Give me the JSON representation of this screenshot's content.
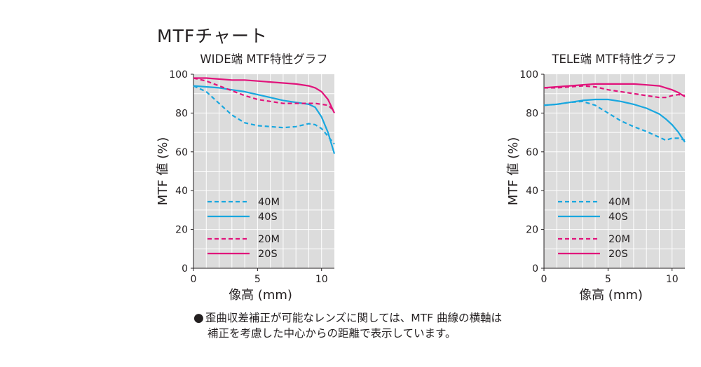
{
  "page": {
    "title": "MTFチャート"
  },
  "note": {
    "bullet": "●",
    "line1": "歪曲収差補正が可能なレンズに関しては、MTF 曲線の横軸は",
    "line2": "補正を考慮した中心からの距離で表示しています。"
  },
  "colors": {
    "cyan": "#19a7df",
    "magenta": "#e1137b",
    "plot_bg": "#dcdcdc",
    "grid": "#ffffff"
  },
  "chart_data": [
    {
      "type": "line",
      "title": "WIDE端 MTF特性グラフ",
      "xlabel": "像高 (mm)",
      "ylabel": "MTF 値 (%)",
      "xlim": [
        0,
        11
      ],
      "ylim": [
        0,
        100
      ],
      "xticks": [
        0,
        5,
        10
      ],
      "yticks": [
        0,
        20,
        40,
        60,
        80,
        100
      ],
      "grid": true,
      "legend": "lower-left",
      "series": [
        {
          "name": "40M",
          "color": "#19a7df",
          "dash": true,
          "x": [
            0,
            1,
            2,
            3,
            4,
            5,
            6,
            7,
            8,
            9,
            9.5,
            10,
            10.5,
            11
          ],
          "y": [
            94,
            91,
            85,
            79,
            75,
            73.5,
            73,
            72.5,
            73,
            74.5,
            74,
            72,
            68,
            64
          ]
        },
        {
          "name": "40S",
          "color": "#19a7df",
          "dash": false,
          "x": [
            0,
            1,
            2,
            3,
            4,
            5,
            6,
            7,
            8,
            9,
            9.5,
            10,
            10.5,
            11
          ],
          "y": [
            94,
            93.5,
            93,
            92,
            91,
            89.5,
            88,
            86.5,
            85.5,
            84.5,
            83,
            78,
            70,
            59
          ]
        },
        {
          "name": "20M",
          "color": "#e1137b",
          "dash": true,
          "x": [
            0,
            1,
            2,
            3,
            4,
            5,
            6,
            7,
            8,
            9,
            9.5,
            10,
            10.5,
            11
          ],
          "y": [
            98,
            96.5,
            94,
            91.5,
            89,
            87,
            86,
            85,
            85,
            85,
            85,
            84.5,
            84,
            81
          ]
        },
        {
          "name": "20S",
          "color": "#e1137b",
          "dash": false,
          "x": [
            0,
            1,
            2,
            3,
            4,
            5,
            6,
            7,
            8,
            9,
            9.5,
            10,
            10.5,
            11
          ],
          "y": [
            98,
            98,
            97.5,
            97,
            97,
            96.5,
            96,
            95.5,
            95,
            94,
            93,
            91,
            87,
            80
          ]
        }
      ]
    },
    {
      "type": "line",
      "title": "TELE端 MTF特性グラフ",
      "xlabel": "像高 (mm)",
      "ylabel": "MTF 値 (%)",
      "xlim": [
        0,
        11
      ],
      "ylim": [
        0,
        100
      ],
      "xticks": [
        0,
        5,
        10
      ],
      "yticks": [
        0,
        20,
        40,
        60,
        80,
        100
      ],
      "grid": true,
      "legend": "lower-left",
      "series": [
        {
          "name": "40M",
          "color": "#19a7df",
          "dash": true,
          "x": [
            0,
            1,
            2,
            3,
            4,
            5,
            6,
            7,
            8,
            9,
            9.5,
            10,
            10.5,
            11
          ],
          "y": [
            84,
            84.5,
            85.5,
            86,
            84,
            80,
            76,
            73,
            70.5,
            67.5,
            66,
            67,
            67,
            66
          ]
        },
        {
          "name": "40S",
          "color": "#19a7df",
          "dash": false,
          "x": [
            0,
            1,
            2,
            3,
            4,
            5,
            6,
            7,
            8,
            9,
            9.5,
            10,
            10.5,
            11
          ],
          "y": [
            84,
            84.5,
            85.5,
            86.5,
            87,
            87,
            86,
            84.5,
            82.5,
            79.5,
            77,
            74,
            70,
            65
          ]
        },
        {
          "name": "20M",
          "color": "#e1137b",
          "dash": true,
          "x": [
            0,
            1,
            2,
            3,
            4,
            5,
            6,
            7,
            8,
            9,
            9.5,
            10,
            10.5,
            11
          ],
          "y": [
            93,
            93,
            93.5,
            94,
            93.5,
            92,
            91,
            90,
            89,
            88,
            88,
            89,
            89.5,
            89
          ]
        },
        {
          "name": "20S",
          "color": "#e1137b",
          "dash": false,
          "x": [
            0,
            1,
            2,
            3,
            4,
            5,
            6,
            7,
            8,
            9,
            9.5,
            10,
            10.5,
            11
          ],
          "y": [
            93,
            93.5,
            94,
            94.5,
            95,
            95,
            95,
            95,
            94.5,
            94,
            93,
            92,
            90.5,
            88.5
          ]
        }
      ]
    }
  ]
}
